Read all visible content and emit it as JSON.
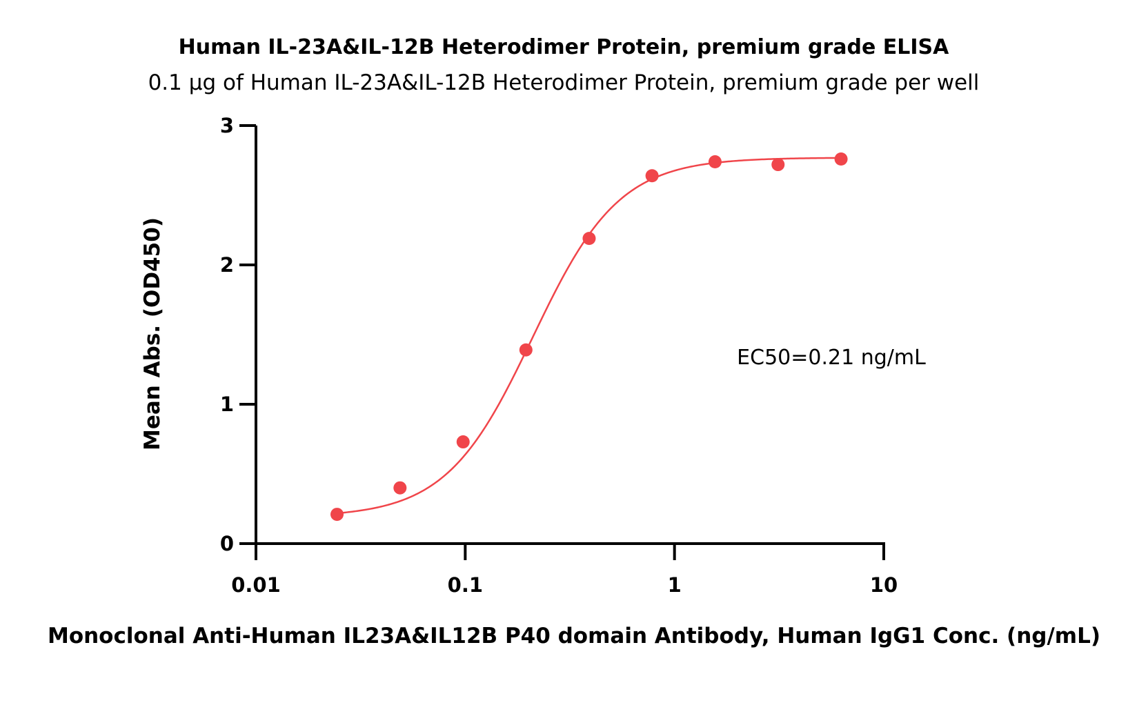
{
  "chart_data": {
    "type": "scatter",
    "title": "Human IL-23A&IL-12B Heterodimer Protein, premium grade ELISA",
    "subtitle": "0.1 µg of Human IL-23A&IL-12B Heterodimer Protein, premium grade per well",
    "xlabel": "Monoclonal Anti-Human IL23A&IL12B P40 domain Antibody, Human IgG1 Conc. (ng/mL)",
    "ylabel": "Mean Abs. (OD450)",
    "x_scale": "log",
    "xlim": [
      0.01,
      10
    ],
    "ylim": [
      0,
      3
    ],
    "x_ticks": [
      0.01,
      0.1,
      1,
      10
    ],
    "x_tick_labels": [
      "0.01",
      "0.1",
      "1",
      "10"
    ],
    "y_ticks": [
      0,
      1,
      2,
      3
    ],
    "y_tick_labels": [
      "0",
      "1",
      "2",
      "3"
    ],
    "grid": false,
    "color": "#f0454a",
    "series": [
      {
        "x": [
          0.0244,
          0.0488,
          0.0977,
          0.195,
          0.391,
          0.781,
          1.5625,
          3.125,
          6.25
        ],
        "y": [
          0.21,
          0.4,
          0.73,
          1.39,
          2.19,
          2.64,
          2.74,
          2.72,
          2.76
        ]
      }
    ],
    "fit": {
      "model": "4PL",
      "bottom": 0.19,
      "top": 2.77,
      "ec50": 0.21,
      "hill": 2.1
    },
    "annotation": "EC50=0.21 ng/mL"
  }
}
